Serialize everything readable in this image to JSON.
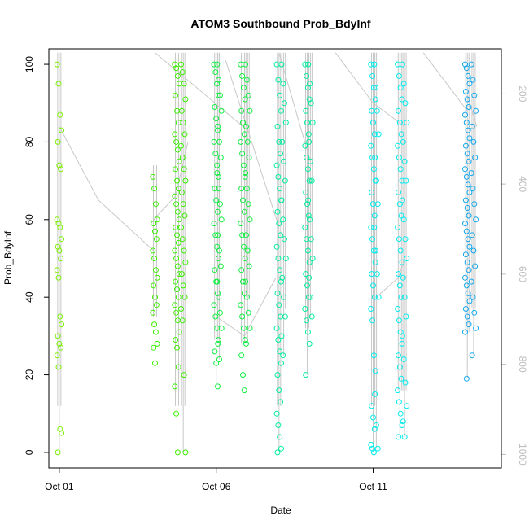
{
  "chart_data": {
    "type": "scatter",
    "title": "ATOM3 Southbound Prob_BdyInf",
    "xlabel": "Date",
    "ylabel": "Prob_BdyInf",
    "x_unit": "days (Oct 2013)",
    "xlim": [
      "Sep 30 16:00",
      "Oct 15 02:00"
    ],
    "ylim": [
      -4,
      104
    ],
    "x_ticks": [
      {
        "label": "Oct 01",
        "day": 1
      },
      {
        "label": "Oct 06",
        "day": 6
      },
      {
        "label": "Oct 11",
        "day": 11
      }
    ],
    "y_ticks": [
      0,
      20,
      40,
      60,
      80,
      100
    ],
    "secondary_axis": {
      "ticks": [
        200,
        400,
        600,
        800,
        1000
      ],
      "range": [
        100,
        1030
      ],
      "inverted": true,
      "label": ""
    },
    "grid": false,
    "colors": {
      "frame": "#000000",
      "track": "#c8c8c8",
      "secondary_axis": "#bdbdbd"
    },
    "series": [
      {
        "color": "#7cf000",
        "points": [
          {
            "day": 1.0,
            "ys": [
              100,
              95,
              87,
              83,
              80,
              74,
              73,
              60,
              59,
              58,
              55,
              53,
              52,
              50,
              47,
              45,
              35,
              33,
              30,
              28,
              27,
              25,
              22,
              6,
              5,
              0
            ]
          }
        ]
      },
      {
        "color": "#3aef00",
        "points": [
          {
            "day": 4.05,
            "ys": [
              71,
              68,
              64,
              60,
              59,
              57,
              55,
              52,
              50,
              47,
              45,
              43,
              40,
              38,
              36,
              33,
              31,
              28,
              27,
              23
            ]
          },
          {
            "day": 4.75,
            "ys": [
              100,
              99,
              97,
              95,
              92,
              88,
              85,
              82,
              80,
              78,
              75,
              73,
              70,
              68,
              66,
              64,
              62,
              60,
              58,
              56,
              54,
              52,
              50,
              48,
              46,
              44,
              42,
              40,
              38,
              36,
              34,
              31,
              29,
              27,
              22,
              17,
              10,
              0
            ]
          },
          {
            "day": 4.95,
            "ys": [
              100,
              98,
              95,
              91,
              88,
              85,
              82,
              79,
              76,
              73,
              70,
              67,
              64,
              61,
              58,
              55,
              52,
              49,
              46,
              43,
              40,
              37,
              34,
              20,
              0
            ]
          }
        ]
      },
      {
        "color": "#10ee40",
        "points": [
          {
            "day": 6.0,
            "ys": [
              100,
              98,
              95,
              92,
              89,
              86,
              83,
              80,
              77,
              74,
              71,
              68,
              65,
              62,
              59,
              56,
              53,
              50,
              47,
              44,
              41,
              38,
              35,
              32,
              29,
              26,
              23,
              17
            ]
          },
          {
            "day": 6.1,
            "ys": [
              100,
              96,
              92,
              88,
              84,
              80,
              76,
              72,
              68,
              64,
              60,
              56,
              52,
              48,
              44,
              40,
              36,
              32,
              28,
              24
            ]
          },
          {
            "day": 6.85,
            "ys": [
              100,
              97,
              94,
              91,
              88,
              85,
              82,
              80,
              77,
              74,
              71,
              68,
              65,
              62,
              59,
              56,
              53,
              50,
              47,
              44,
              41,
              38,
              35,
              32,
              29,
              25,
              20,
              16
            ]
          },
          {
            "day": 7.0,
            "ys": [
              100,
              96,
              92,
              88,
              84,
              80,
              76,
              72,
              68,
              64,
              60,
              56,
              52,
              48,
              44,
              40,
              36,
              32,
              28
            ]
          }
        ]
      },
      {
        "color": "#00eda0",
        "points": [
          {
            "day": 8.0,
            "ys": [
              100,
              96,
              92,
              88,
              84,
              80,
              77,
              74,
              71,
              68,
              65,
              62,
              59,
              56,
              53,
              50,
              47,
              44,
              41,
              38,
              35,
              32,
              29,
              26,
              23,
              20,
              16,
              13,
              10,
              7,
              4,
              1,
              0
            ]
          },
          {
            "day": 8.15,
            "ys": [
              100,
              95,
              90,
              85,
              80,
              75,
              70,
              65,
              60,
              55,
              50,
              45,
              40,
              35,
              30,
              25
            ]
          },
          {
            "day": 8.9,
            "ys": [
              100,
              97,
              94,
              91,
              88,
              85,
              82,
              79,
              76,
              73,
              70,
              67,
              64,
              61,
              58,
              55,
              52,
              49,
              46,
              43,
              40,
              37,
              34,
              31,
              28,
              20
            ]
          },
          {
            "day": 9.0,
            "ys": [
              100,
              95,
              90,
              85,
              80,
              75,
              70,
              65,
              60,
              55,
              50,
              45,
              40,
              35
            ]
          }
        ]
      },
      {
        "color": "#00eded",
        "points": [
          {
            "day": 11.0,
            "ys": [
              100,
              97,
              94,
              91,
              88,
              85,
              82,
              79,
              76,
              73,
              70,
              67,
              64,
              61,
              58,
              55,
              52,
              49,
              46,
              43,
              40,
              37,
              34,
              25,
              21,
              12,
              9,
              6,
              2,
              1,
              0
            ]
          },
          {
            "day": 11.1,
            "ys": [
              100,
              94,
              88,
              82,
              76,
              70,
              64,
              58,
              52,
              46,
              40,
              15,
              7,
              1
            ]
          },
          {
            "day": 11.85,
            "ys": [
              100,
              97,
              94,
              91,
              88,
              85,
              82,
              79,
              76,
              73,
              70,
              67,
              64,
              61,
              58,
              55,
              52,
              49,
              46,
              43,
              40,
              37,
              34,
              31,
              28,
              25,
              22,
              19,
              16,
              13,
              10,
              7,
              4
            ]
          },
          {
            "day": 12.0,
            "ys": [
              100,
              95,
              90,
              85,
              80,
              75,
              70,
              65,
              60,
              55,
              50,
              45,
              40,
              35,
              30,
              24,
              18,
              12,
              8,
              4
            ]
          }
        ]
      },
      {
        "color": "#10a8ee",
        "points": [
          {
            "day": 14.0,
            "ys": [
              100,
              99,
              97,
              95,
              93,
              91,
              89,
              87,
              85,
              83,
              81,
              79,
              77,
              75,
              73,
              71,
              69,
              67,
              65,
              63,
              61,
              59,
              57,
              55,
              53,
              51,
              49,
              47,
              45,
              43,
              41,
              39,
              37,
              35,
              33,
              31,
              19
            ]
          },
          {
            "day": 14.2,
            "ys": [
              100,
              96,
              92,
              88,
              84,
              80,
              76,
              72,
              68,
              64,
              60,
              56,
              52,
              48,
              44,
              40,
              36,
              32,
              25
            ]
          }
        ]
      }
    ],
    "tracks": [
      {
        "from": [
          1.0,
          84
        ],
        "to": [
          2.25,
          65
        ]
      },
      {
        "from": [
          2.25,
          65
        ],
        "to": [
          4.0,
          52
        ]
      },
      {
        "from": [
          4.0,
          60
        ],
        "to": [
          4.7,
          66
        ]
      },
      {
        "from": [
          4.7,
          66
        ],
        "to": [
          5.1,
          80
        ]
      },
      {
        "from": [
          4.05,
          103
        ],
        "to": [
          6.85,
          84
        ]
      },
      {
        "from": [
          4.05,
          103
        ],
        "to": [
          4.05,
          60
        ]
      },
      {
        "from": [
          6.0,
          35
        ],
        "to": [
          6.9,
          30
        ]
      },
      {
        "from": [
          6.9,
          30
        ],
        "to": [
          7.9,
          45
        ]
      },
      {
        "from": [
          6.3,
          101
        ],
        "to": [
          8.0,
          58
        ]
      },
      {
        "from": [
          8.0,
          103
        ],
        "to": [
          9.0,
          75
        ]
      },
      {
        "from": [
          9.8,
          103
        ],
        "to": [
          11.0,
          90
        ]
      },
      {
        "from": [
          11.1,
          40
        ],
        "to": [
          11.8,
          45
        ]
      },
      {
        "from": [
          11.8,
          45
        ],
        "to": [
          12.0,
          50
        ]
      },
      {
        "from": [
          12.0,
          84
        ],
        "to": [
          11.0,
          90
        ]
      },
      {
        "from": [
          12.6,
          103
        ],
        "to": [
          14.0,
          88
        ]
      },
      {
        "from": [
          14.0,
          92
        ],
        "to": [
          14.3,
          84
        ]
      }
    ]
  }
}
